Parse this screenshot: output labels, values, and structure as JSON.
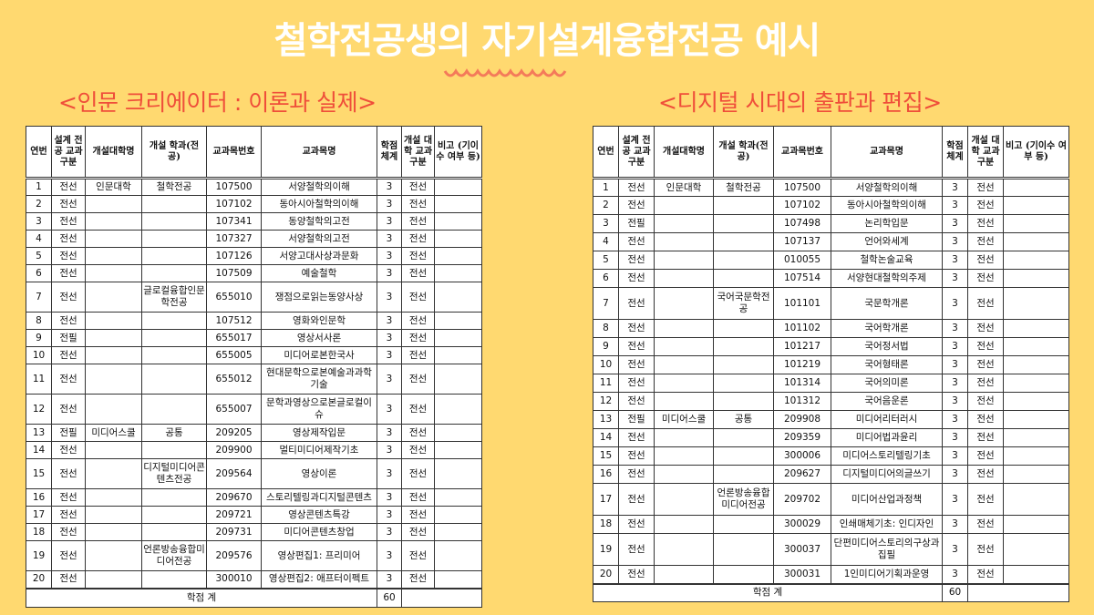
{
  "title": "철학전공생의 자기설계융합전공 예시",
  "colors": {
    "background": "#FFD970",
    "title": "#FFFFFF",
    "subtitle": "#EF4E3A",
    "wave": "#F47A5A"
  },
  "headers": [
    "연번",
    "설계 전공 교과 구분",
    "개설대학명",
    "개설 학과(전공)",
    "교과목번호",
    "교과목명",
    "학점 체계",
    "개설 대학 교과 구분",
    "비고 (기이수 여부 등)"
  ],
  "left": {
    "subtitle": "<인문 크리에이터 : 이론과 실제>",
    "rows": [
      [
        "1",
        "전선",
        "인문대학",
        "철학전공",
        "107500",
        "서양철학의이해",
        "3",
        "전선",
        ""
      ],
      [
        "2",
        "전선",
        "",
        "",
        "107102",
        "동아시아철학의이해",
        "3",
        "전선",
        ""
      ],
      [
        "3",
        "전선",
        "",
        "",
        "107341",
        "동양철학의고전",
        "3",
        "전선",
        ""
      ],
      [
        "4",
        "전선",
        "",
        "",
        "107327",
        "서양철학의고전",
        "3",
        "전선",
        ""
      ],
      [
        "5",
        "전선",
        "",
        "",
        "107126",
        "서양고대사상과문화",
        "3",
        "전선",
        ""
      ],
      [
        "6",
        "전선",
        "",
        "",
        "107509",
        "예술철학",
        "3",
        "전선",
        ""
      ],
      [
        "7",
        "전선",
        "",
        "글로컬융합인문학전공",
        "655010",
        "쟁점으로읽는동양사상",
        "3",
        "전선",
        ""
      ],
      [
        "8",
        "전선",
        "",
        "",
        "107512",
        "영화와인문학",
        "3",
        "전선",
        ""
      ],
      [
        "9",
        "전필",
        "",
        "",
        "655017",
        "영상서사론",
        "3",
        "전선",
        ""
      ],
      [
        "10",
        "전선",
        "",
        "",
        "655005",
        "미디어로본한국사",
        "3",
        "전선",
        ""
      ],
      [
        "11",
        "전선",
        "",
        "",
        "655012",
        "현대문학으로본예술과과학기술",
        "3",
        "전선",
        ""
      ],
      [
        "12",
        "전선",
        "",
        "",
        "655007",
        "문학과영상으로본글로컬이슈",
        "3",
        "전선",
        ""
      ],
      [
        "13",
        "전필",
        "미디어스쿨",
        "공통",
        "209205",
        "영상제작입문",
        "3",
        "전선",
        ""
      ],
      [
        "14",
        "전선",
        "",
        "",
        "209900",
        "멀티미디어제작기초",
        "3",
        "전선",
        ""
      ],
      [
        "15",
        "전선",
        "",
        "디지털미디어콘텐츠전공",
        "209564",
        "영상이론",
        "3",
        "전선",
        ""
      ],
      [
        "16",
        "전선",
        "",
        "",
        "209670",
        "스토리텔링과디지털콘텐츠",
        "3",
        "전선",
        ""
      ],
      [
        "17",
        "전선",
        "",
        "",
        "209721",
        "영상콘텐츠특강",
        "3",
        "전선",
        ""
      ],
      [
        "18",
        "전선",
        "",
        "",
        "209731",
        "미디어콘텐츠창업",
        "3",
        "전선",
        ""
      ],
      [
        "19",
        "전선",
        "",
        "언론방송융합미디어전공",
        "209576",
        "영상편집1: 프리미어",
        "3",
        "전선",
        ""
      ],
      [
        "20",
        "전선",
        "",
        "",
        "300010",
        "영상편집2: 애프터이펙트",
        "3",
        "전선",
        ""
      ]
    ],
    "tall_rows": [
      7,
      11,
      12,
      15,
      19
    ],
    "total_label": "학점 계",
    "total_value": "60"
  },
  "right": {
    "subtitle": "<디지털 시대의 출판과 편집>",
    "rows": [
      [
        "1",
        "전선",
        "인문대학",
        "철학전공",
        "107500",
        "서양철학의이해",
        "3",
        "전선",
        ""
      ],
      [
        "2",
        "전선",
        "",
        "",
        "107102",
        "동아시아철학의이해",
        "3",
        "전선",
        ""
      ],
      [
        "3",
        "전필",
        "",
        "",
        "107498",
        "논리학입문",
        "3",
        "전선",
        ""
      ],
      [
        "4",
        "전선",
        "",
        "",
        "107137",
        "언어와세계",
        "3",
        "전선",
        ""
      ],
      [
        "5",
        "전선",
        "",
        "",
        "010055",
        "철학논술교육",
        "3",
        "전선",
        ""
      ],
      [
        "6",
        "전선",
        "",
        "",
        "107514",
        "서양현대철학의주제",
        "3",
        "전선",
        ""
      ],
      [
        "7",
        "전선",
        "",
        "국어국문학전공",
        "101101",
        "국문학개론",
        "3",
        "전선",
        ""
      ],
      [
        "8",
        "전선",
        "",
        "",
        "101102",
        "국어학개론",
        "3",
        "전선",
        ""
      ],
      [
        "9",
        "전선",
        "",
        "",
        "101217",
        "국어정서법",
        "3",
        "전선",
        ""
      ],
      [
        "10",
        "전선",
        "",
        "",
        "101219",
        "국어형태론",
        "3",
        "전선",
        ""
      ],
      [
        "11",
        "전선",
        "",
        "",
        "101314",
        "국어의미론",
        "3",
        "전선",
        ""
      ],
      [
        "12",
        "전선",
        "",
        "",
        "101312",
        "국어음운론",
        "3",
        "전선",
        ""
      ],
      [
        "13",
        "전필",
        "미디어스쿨",
        "공통",
        "209908",
        "미디어리터러시",
        "3",
        "전선",
        ""
      ],
      [
        "14",
        "전선",
        "",
        "",
        "209359",
        "미디어법과윤리",
        "3",
        "전선",
        ""
      ],
      [
        "15",
        "전선",
        "",
        "",
        "300006",
        "미디어스토리텔링기초",
        "3",
        "전선",
        ""
      ],
      [
        "16",
        "전선",
        "",
        "",
        "209627",
        "디지털미디어의글쓰기",
        "3",
        "전선",
        ""
      ],
      [
        "17",
        "전선",
        "",
        "언론방송융합미디어전공",
        "209702",
        "미디어산업과정책",
        "3",
        "전선",
        ""
      ],
      [
        "18",
        "전선",
        "",
        "",
        "300029",
        "인쇄매체기초: 인디자인",
        "3",
        "전선",
        ""
      ],
      [
        "19",
        "전선",
        "",
        "",
        "300037",
        "단편미디어스토리의구상과집필",
        "3",
        "전선",
        ""
      ],
      [
        "20",
        "전선",
        "",
        "",
        "300031",
        "1인미디어기획과운영",
        "3",
        "전선",
        ""
      ]
    ],
    "tall_rows": [
      7,
      17,
      19
    ],
    "total_label": "학점 계",
    "total_value": "60"
  }
}
